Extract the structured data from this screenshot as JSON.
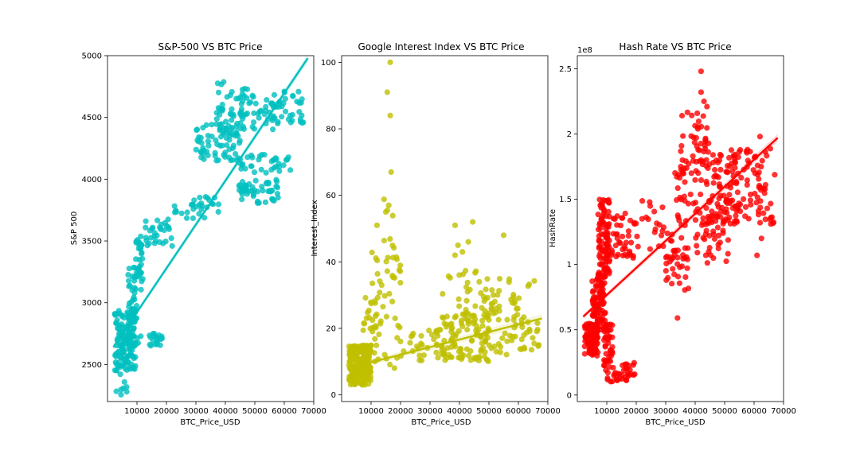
{
  "chart_data": [
    {
      "type": "scatter",
      "title": "S&P-500 VS BTC Price",
      "xlabel": "BTC_Price_USD",
      "ylabel": "S&P 500",
      "xlim": [
        0,
        70000
      ],
      "ylim": [
        2200,
        5000
      ],
      "xticks": [
        10000,
        20000,
        30000,
        40000,
        50000,
        60000,
        70000
      ],
      "yticks": [
        2500,
        3000,
        3500,
        4000,
        4500,
        5000
      ],
      "multiplier": "",
      "color": "#00bfbf",
      "trend": {
        "x": [
          2000,
          68000
        ],
        "y": [
          2640,
          4980
        ]
      },
      "clusters": [
        {
          "x": [
            2500,
            9500
          ],
          "y": [
            2450,
            2950
          ],
          "n": 150
        },
        {
          "x": [
            3000,
            7000
          ],
          "y": [
            2250,
            2500
          ],
          "n": 10
        },
        {
          "x": [
            7500,
            19000
          ],
          "y": [
            2650,
            2760
          ],
          "n": 25
        },
        {
          "x": [
            7000,
            10000
          ],
          "y": [
            2850,
            3300
          ],
          "n": 30
        },
        {
          "x": [
            9000,
            12000
          ],
          "y": [
            3100,
            3550
          ],
          "n": 35
        },
        {
          "x": [
            12000,
            22000
          ],
          "y": [
            3450,
            3700
          ],
          "n": 30
        },
        {
          "x": [
            22000,
            38000
          ],
          "y": [
            3680,
            3860
          ],
          "n": 30
        },
        {
          "x": [
            30000,
            45000
          ],
          "y": [
            4150,
            4450
          ],
          "n": 70
        },
        {
          "x": [
            37000,
            50000
          ],
          "y": [
            4400,
            4800
          ],
          "n": 45
        },
        {
          "x": [
            45000,
            58000
          ],
          "y": [
            4400,
            4650
          ],
          "n": 35
        },
        {
          "x": [
            55000,
            67000
          ],
          "y": [
            4450,
            4720
          ],
          "n": 35
        },
        {
          "x": [
            45000,
            63000
          ],
          "y": [
            4050,
            4200
          ],
          "n": 35
        },
        {
          "x": [
            45000,
            58000
          ],
          "y": [
            3800,
            4000
          ],
          "n": 40
        },
        {
          "x": [
            44000,
            50000
          ],
          "y": [
            3880,
            3960
          ],
          "n": 12
        }
      ]
    },
    {
      "type": "scatter",
      "title": "Google Interest Index VS BTC Price",
      "xlabel": "BTC_Price_USD",
      "ylabel": "Interest_Index",
      "xlim": [
        0,
        70000
      ],
      "ylim": [
        -2,
        102
      ],
      "xticks": [
        10000,
        20000,
        30000,
        40000,
        50000,
        60000,
        70000
      ],
      "yticks": [
        0,
        20,
        40,
        60,
        80,
        100
      ],
      "multiplier": "",
      "color": "#bfbf00",
      "trend": {
        "x": [
          2000,
          68000
        ],
        "y": [
          8,
          23
        ]
      },
      "clusters": [
        {
          "x": [
            2500,
            10000
          ],
          "y": [
            3,
            15
          ],
          "n": 240
        },
        {
          "x": [
            7000,
            12000
          ],
          "y": [
            10,
            30
          ],
          "n": 30
        },
        {
          "x": [
            12000,
            20000
          ],
          "y": [
            5,
            45
          ],
          "n": 35
        },
        {
          "x": [
            14000,
            18000
          ],
          "y": [
            40,
            60
          ],
          "n": 8
        },
        {
          "x": [
            20000,
            35000
          ],
          "y": [
            10,
            20
          ],
          "n": 25
        },
        {
          "x": [
            32000,
            50000
          ],
          "y": [
            10,
            25
          ],
          "n": 110
        },
        {
          "x": [
            34000,
            48000
          ],
          "y": [
            25,
            38
          ],
          "n": 20
        },
        {
          "x": [
            48000,
            67000
          ],
          "y": [
            10,
            35
          ],
          "n": 90
        },
        {
          "x": [
            9000,
            14000
          ],
          "y": [
            28,
            52
          ],
          "n": 4
        }
      ],
      "points": [
        [
          16500,
          100
        ],
        [
          15500,
          91
        ],
        [
          16500,
          84
        ],
        [
          16800,
          67
        ],
        [
          15000,
          55
        ],
        [
          16000,
          57
        ],
        [
          12000,
          51
        ],
        [
          44500,
          52
        ],
        [
          38500,
          51
        ],
        [
          43000,
          46
        ],
        [
          55000,
          48
        ],
        [
          39500,
          45
        ],
        [
          38500,
          42
        ],
        [
          41000,
          43
        ]
      ]
    },
    {
      "type": "scatter",
      "title": "Hash Rate VS BTC Price",
      "xlabel": "BTC_Price_USD",
      "ylabel": "HashRate",
      "xlim": [
        0,
        70000
      ],
      "ylim": [
        -0.05,
        2.6
      ],
      "xticks": [
        10000,
        20000,
        30000,
        40000,
        50000,
        60000,
        70000
      ],
      "yticks": [
        0.0,
        0.5,
        1.0,
        1.5,
        2.0,
        2.5
      ],
      "multiplier": "1e8",
      "color": "#ff0000",
      "trend": {
        "x": [
          2000,
          68000
        ],
        "y": [
          0.6,
          1.97
        ]
      },
      "clusters": [
        {
          "x": [
            2500,
            7000
          ],
          "y": [
            0.3,
            0.55
          ],
          "n": 100
        },
        {
          "x": [
            5000,
            9500
          ],
          "y": [
            0.5,
            0.9
          ],
          "n": 80
        },
        {
          "x": [
            7000,
            11000
          ],
          "y": [
            0.9,
            1.5
          ],
          "n": 100
        },
        {
          "x": [
            9000,
            12000
          ],
          "y": [
            0.25,
            0.55
          ],
          "n": 40
        },
        {
          "x": [
            9000,
            20000
          ],
          "y": [
            0.1,
            0.25
          ],
          "n": 40
        },
        {
          "x": [
            11000,
            20000
          ],
          "y": [
            1.05,
            1.4
          ],
          "n": 40
        },
        {
          "x": [
            20000,
            30000
          ],
          "y": [
            1.1,
            1.5
          ],
          "n": 20
        },
        {
          "x": [
            30000,
            38000
          ],
          "y": [
            0.8,
            1.25
          ],
          "n": 40
        },
        {
          "x": [
            33000,
            45000
          ],
          "y": [
            1.3,
            1.8
          ],
          "n": 50
        },
        {
          "x": [
            35000,
            45000
          ],
          "y": [
            1.7,
            2.2
          ],
          "n": 40
        },
        {
          "x": [
            40000,
            52000
          ],
          "y": [
            1.0,
            1.5
          ],
          "n": 50
        },
        {
          "x": [
            45000,
            55000
          ],
          "y": [
            1.3,
            1.85
          ],
          "n": 60
        },
        {
          "x": [
            52000,
            67000
          ],
          "y": [
            1.3,
            1.9
          ],
          "n": 80
        }
      ],
      "points": [
        [
          42000,
          2.48
        ],
        [
          42000,
          2.32
        ],
        [
          43000,
          2.25
        ],
        [
          44000,
          2.21
        ],
        [
          34000,
          0.59
        ],
        [
          62000,
          1.98
        ],
        [
          61000,
          1.07
        ],
        [
          62500,
          1.2
        ]
      ]
    }
  ]
}
